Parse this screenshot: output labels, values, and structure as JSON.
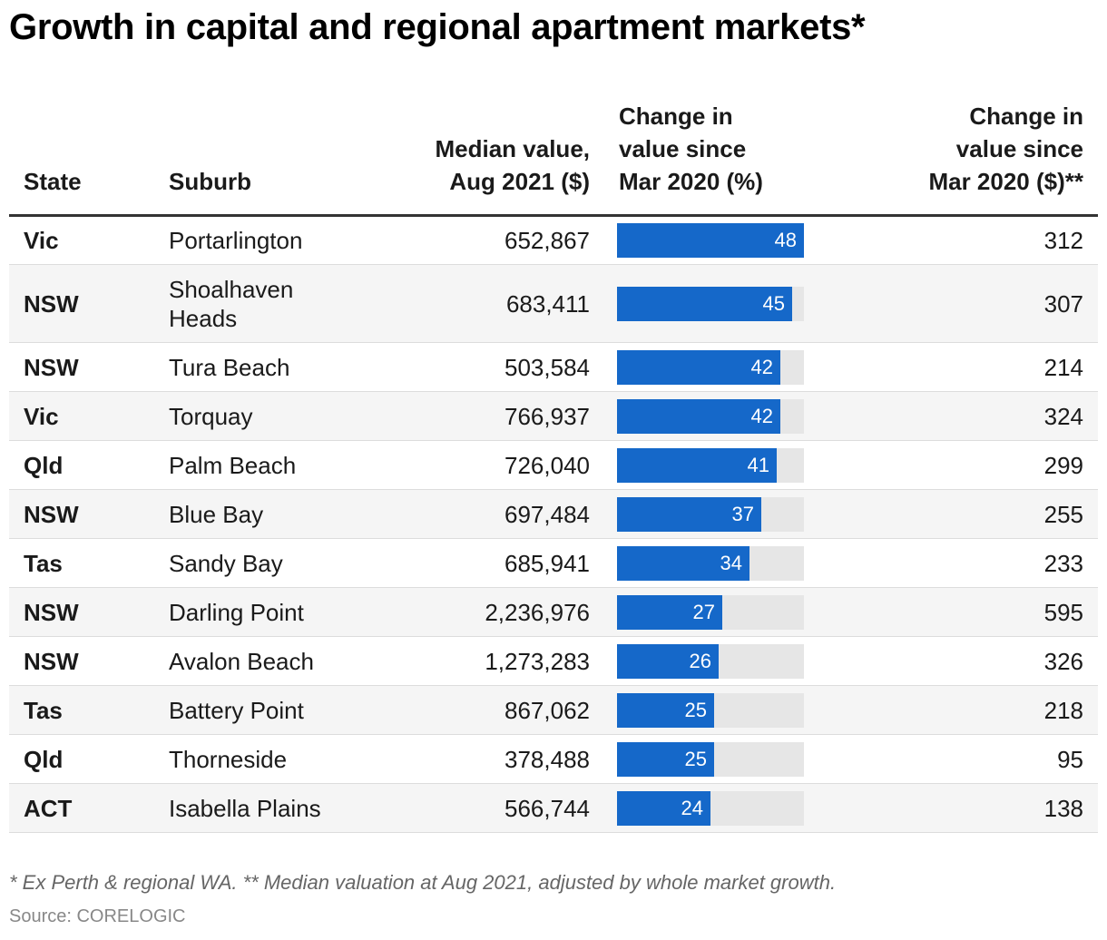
{
  "title": "Growth in capital and regional apartment markets*",
  "headers": {
    "state": "State",
    "suburb": "Suburb",
    "median": "Median value,\nAug 2021 ($)",
    "change_pct": "Change in\nvalue since\nMar 2020 (%)",
    "change_usd": "Change in\nvalue since\nMar 2020 ($)**"
  },
  "colors": {
    "bar": "#1568c9",
    "track": "#e6e6e6"
  },
  "chart_data": {
    "type": "table",
    "bar_max": 48,
    "rows": [
      {
        "state": "Vic",
        "suburb": "Portarlington",
        "median": "652,867",
        "change_pct": 48,
        "change_usd": "312"
      },
      {
        "state": "NSW",
        "suburb": "Shoalhaven\nHeads",
        "median": "683,411",
        "change_pct": 45,
        "change_usd": "307"
      },
      {
        "state": "NSW",
        "suburb": "Tura Beach",
        "median": "503,584",
        "change_pct": 42,
        "change_usd": "214"
      },
      {
        "state": "Vic",
        "suburb": "Torquay",
        "median": "766,937",
        "change_pct": 42,
        "change_usd": "324"
      },
      {
        "state": "Qld",
        "suburb": "Palm Beach",
        "median": "726,040",
        "change_pct": 41,
        "change_usd": "299"
      },
      {
        "state": "NSW",
        "suburb": "Blue Bay",
        "median": "697,484",
        "change_pct": 37,
        "change_usd": "255"
      },
      {
        "state": "Tas",
        "suburb": "Sandy Bay",
        "median": "685,941",
        "change_pct": 34,
        "change_usd": "233"
      },
      {
        "state": "NSW",
        "suburb": "Darling Point",
        "median": "2,236,976",
        "change_pct": 27,
        "change_usd": "595"
      },
      {
        "state": "NSW",
        "suburb": "Avalon Beach",
        "median": "1,273,283",
        "change_pct": 26,
        "change_usd": "326"
      },
      {
        "state": "Tas",
        "suburb": "Battery Point",
        "median": "867,062",
        "change_pct": 25,
        "change_usd": "218"
      },
      {
        "state": "Qld",
        "suburb": "Thorneside",
        "median": "378,488",
        "change_pct": 25,
        "change_usd": "95"
      },
      {
        "state": "ACT",
        "suburb": "Isabella Plains",
        "median": "566,744",
        "change_pct": 24,
        "change_usd": "138"
      }
    ]
  },
  "footnote": "* Ex Perth & regional WA. ** Median valuation at Aug 2021, adjusted by whole market growth.",
  "source": "Source: CORELOGIC"
}
